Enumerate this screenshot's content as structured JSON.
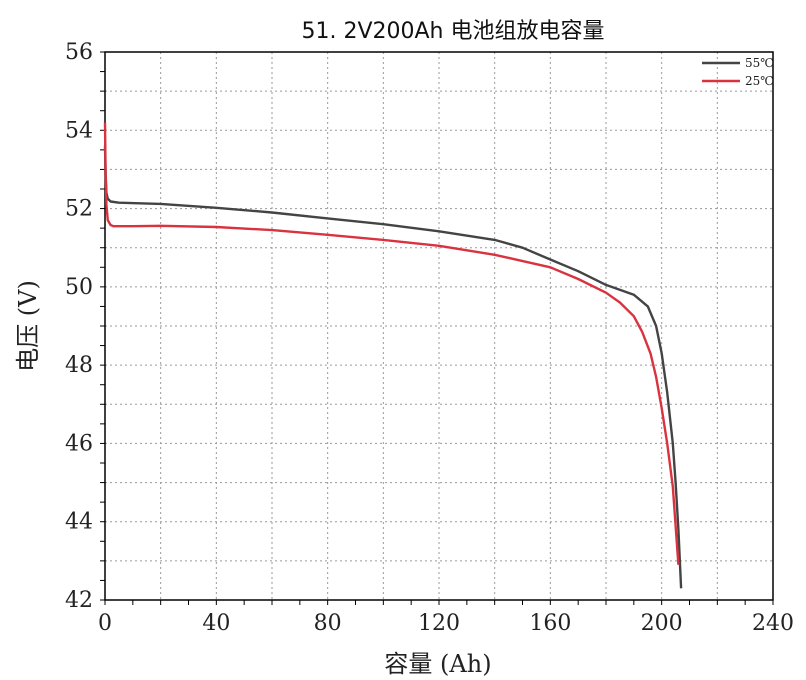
{
  "chart_data": {
    "type": "line",
    "title": "51. 2V200Ah 电池组放电容量",
    "xlabel": "容量 (Ah)",
    "ylabel": "电压 (V)",
    "xlim": [
      0,
      240
    ],
    "ylim": [
      42,
      56
    ],
    "xticks": [
      0,
      40,
      80,
      120,
      160,
      200,
      240
    ],
    "yticks": [
      42,
      44,
      46,
      48,
      50,
      52,
      54,
      56
    ],
    "grid": true,
    "legend_position": "top-right",
    "series": [
      {
        "name": "55℃",
        "color": "#444444",
        "x": [
          0,
          0.2,
          0.5,
          1,
          2,
          5,
          20,
          40,
          60,
          80,
          100,
          120,
          140,
          150,
          160,
          170,
          180,
          190,
          195,
          198,
          200,
          202,
          204,
          205,
          206,
          207
        ],
        "y": [
          53.6,
          52.9,
          52.4,
          52.25,
          52.18,
          52.15,
          52.12,
          52.02,
          51.9,
          51.75,
          51.6,
          51.42,
          51.2,
          51.0,
          50.7,
          50.4,
          50.05,
          49.8,
          49.5,
          49.0,
          48.3,
          47.3,
          46.0,
          45.0,
          43.8,
          42.3
        ]
      },
      {
        "name": "25℃",
        "color": "#d9333f",
        "x": [
          0,
          0.2,
          0.5,
          1,
          2,
          3,
          5,
          10,
          20,
          40,
          60,
          80,
          100,
          120,
          140,
          160,
          170,
          180,
          185,
          190,
          193,
          196,
          198,
          200,
          202,
          204,
          205,
          206
        ],
        "y": [
          54.2,
          52.9,
          52.1,
          51.7,
          51.58,
          51.55,
          51.55,
          51.55,
          51.56,
          51.53,
          51.45,
          51.33,
          51.2,
          51.05,
          50.82,
          50.5,
          50.2,
          49.85,
          49.6,
          49.25,
          48.85,
          48.3,
          47.7,
          46.9,
          46.0,
          44.9,
          43.9,
          42.9
        ]
      }
    ]
  }
}
